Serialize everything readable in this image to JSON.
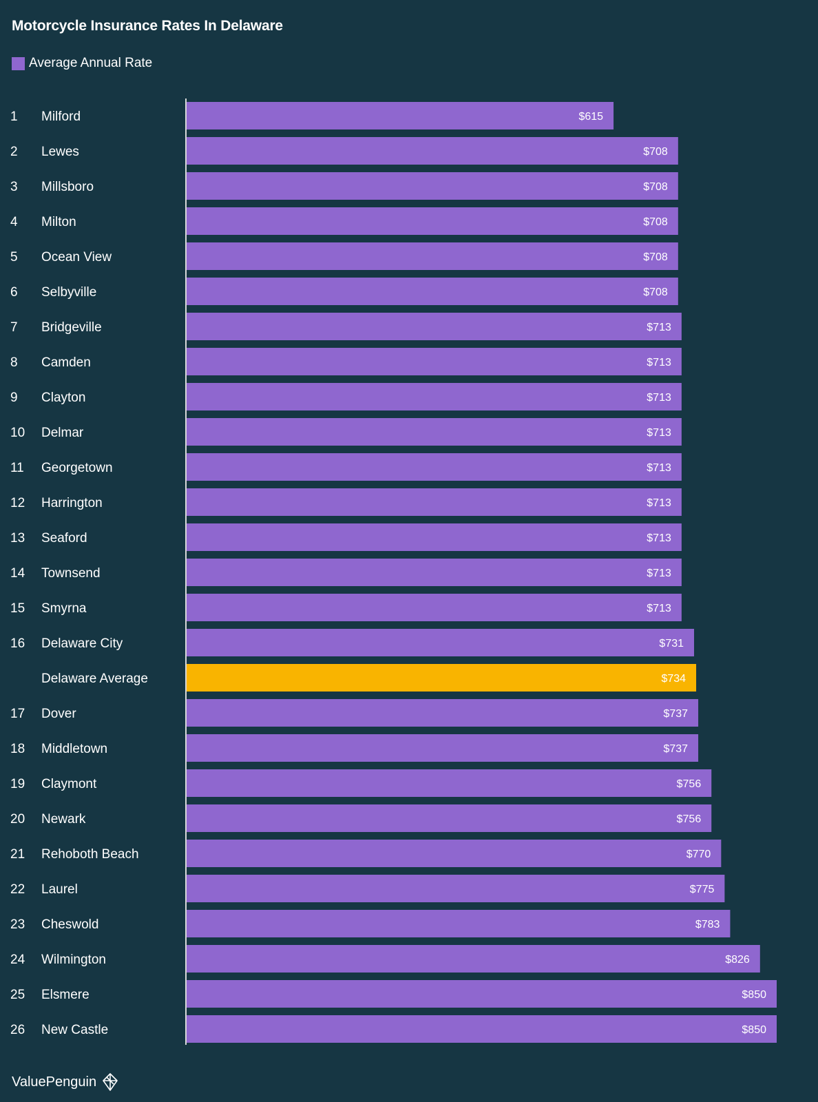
{
  "chart_data": {
    "type": "bar",
    "orientation": "horizontal",
    "title": "Motorcycle Insurance Rates In Delaware",
    "legend": {
      "position": "top-left",
      "entries": [
        "Average Annual Rate"
      ]
    },
    "xlim": [
      0,
      850
    ],
    "grid": false,
    "colors": {
      "series": "#8f67cf",
      "highlight": "#f9b400",
      "background": "#163643"
    },
    "rows": [
      {
        "rank": "1",
        "city": "Milford",
        "value": 615,
        "label": "$615"
      },
      {
        "rank": "2",
        "city": "Lewes",
        "value": 708,
        "label": "$708"
      },
      {
        "rank": "3",
        "city": "Millsboro",
        "value": 708,
        "label": "$708"
      },
      {
        "rank": "4",
        "city": "Milton",
        "value": 708,
        "label": "$708"
      },
      {
        "rank": "5",
        "city": "Ocean View",
        "value": 708,
        "label": "$708"
      },
      {
        "rank": "6",
        "city": "Selbyville",
        "value": 708,
        "label": "$708"
      },
      {
        "rank": "7",
        "city": "Bridgeville",
        "value": 713,
        "label": "$713"
      },
      {
        "rank": "8",
        "city": "Camden",
        "value": 713,
        "label": "$713"
      },
      {
        "rank": "9",
        "city": "Clayton",
        "value": 713,
        "label": "$713"
      },
      {
        "rank": "10",
        "city": "Delmar",
        "value": 713,
        "label": "$713"
      },
      {
        "rank": "11",
        "city": "Georgetown",
        "value": 713,
        "label": "$713"
      },
      {
        "rank": "12",
        "city": "Harrington",
        "value": 713,
        "label": "$713"
      },
      {
        "rank": "13",
        "city": "Seaford",
        "value": 713,
        "label": "$713"
      },
      {
        "rank": "14",
        "city": "Townsend",
        "value": 713,
        "label": "$713"
      },
      {
        "rank": "15",
        "city": "Smyrna",
        "value": 713,
        "label": "$713"
      },
      {
        "rank": "16",
        "city": "Delaware City",
        "value": 731,
        "label": "$731"
      },
      {
        "rank": "",
        "city": "Delaware Average",
        "value": 734,
        "label": "$734",
        "highlight": true
      },
      {
        "rank": "17",
        "city": "Dover",
        "value": 737,
        "label": "$737"
      },
      {
        "rank": "18",
        "city": "Middletown",
        "value": 737,
        "label": "$737"
      },
      {
        "rank": "19",
        "city": "Claymont",
        "value": 756,
        "label": "$756"
      },
      {
        "rank": "20",
        "city": "Newark",
        "value": 756,
        "label": "$756"
      },
      {
        "rank": "21",
        "city": "Rehoboth Beach",
        "value": 770,
        "label": "$770"
      },
      {
        "rank": "22",
        "city": "Laurel",
        "value": 775,
        "label": "$775"
      },
      {
        "rank": "23",
        "city": "Cheswold",
        "value": 783,
        "label": "$783"
      },
      {
        "rank": "24",
        "city": "Wilmington",
        "value": 826,
        "label": "$826"
      },
      {
        "rank": "25",
        "city": "Elsmere",
        "value": 850,
        "label": "$850"
      },
      {
        "rank": "26",
        "city": "New Castle",
        "value": 850,
        "label": "$850"
      }
    ]
  },
  "footer": {
    "brand": "ValuePenguin",
    "logo_icon": "valuepenguin-logo-icon"
  }
}
